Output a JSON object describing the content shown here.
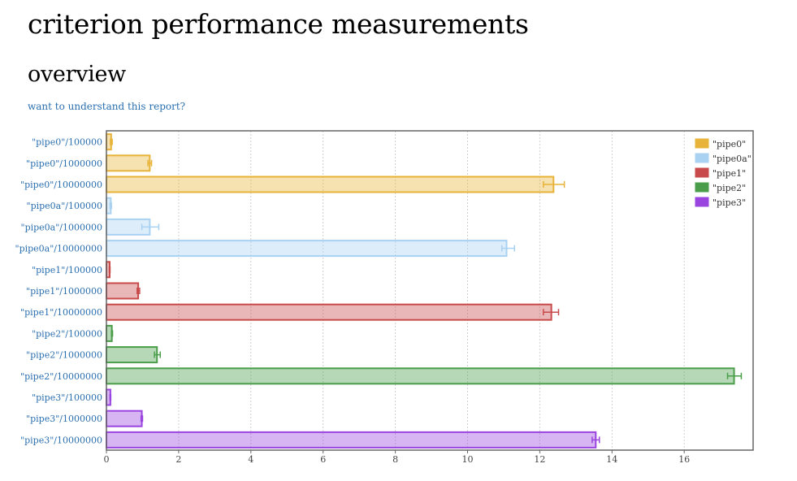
{
  "page": {
    "title": "criterion performance measurements",
    "section": "overview",
    "help_link": "want to understand this report?"
  },
  "chart_data": {
    "type": "bar",
    "orientation": "horizontal",
    "xlim": [
      0,
      18
    ],
    "xticks": [
      0,
      2,
      4,
      6,
      8,
      10,
      12,
      14,
      16
    ],
    "grid": true,
    "legend_position": "top-right",
    "series_colors": {
      "\"pipe0\"": "#e8b339",
      "\"pipe0a\"": "#a9d2f2",
      "\"pipe1\"": "#c94a4a",
      "\"pipe2\"": "#4a9e4a",
      "\"pipe3\"": "#9b45e0"
    },
    "legend": [
      "\"pipe0\"",
      "\"pipe0a\"",
      "\"pipe1\"",
      "\"pipe2\"",
      "\"pipe3\""
    ],
    "bars": [
      {
        "label": "\"pipe0\"/100000",
        "series": "\"pipe0\"",
        "value": 0.13,
        "err_low": 0.11,
        "err_high": 0.16
      },
      {
        "label": "\"pipe0\"/1000000",
        "series": "\"pipe0\"",
        "value": 1.2,
        "err_low": 1.15,
        "err_high": 1.25
      },
      {
        "label": "\"pipe0\"/10000000",
        "series": "\"pipe0\"",
        "value": 12.38,
        "err_low": 12.1,
        "err_high": 12.68
      },
      {
        "label": "\"pipe0a\"/100000",
        "series": "\"pipe0a\"",
        "value": 0.12,
        "err_low": 0.1,
        "err_high": 0.14
      },
      {
        "label": "\"pipe0a\"/1000000",
        "series": "\"pipe0a\"",
        "value": 1.2,
        "err_low": 0.98,
        "err_high": 1.45
      },
      {
        "label": "\"pipe0a\"/10000000",
        "series": "\"pipe0a\"",
        "value": 11.08,
        "err_low": 10.95,
        "err_high": 11.3
      },
      {
        "label": "\"pipe1\"/100000",
        "series": "\"pipe1\"",
        "value": 0.09,
        "err_low": 0.08,
        "err_high": 0.1
      },
      {
        "label": "\"pipe1\"/1000000",
        "series": "\"pipe1\"",
        "value": 0.88,
        "err_low": 0.85,
        "err_high": 0.92
      },
      {
        "label": "\"pipe1\"/10000000",
        "series": "\"pipe1\"",
        "value": 12.32,
        "err_low": 12.1,
        "err_high": 12.52
      },
      {
        "label": "\"pipe2\"/100000",
        "series": "\"pipe2\"",
        "value": 0.15,
        "err_low": 0.14,
        "err_high": 0.17
      },
      {
        "label": "\"pipe2\"/1000000",
        "series": "\"pipe2\"",
        "value": 1.4,
        "err_low": 1.33,
        "err_high": 1.49
      },
      {
        "label": "\"pipe2\"/10000000",
        "series": "\"pipe2\"",
        "value": 17.38,
        "err_low": 17.2,
        "err_high": 17.58
      },
      {
        "label": "\"pipe3\"/100000",
        "series": "\"pipe3\"",
        "value": 0.11,
        "err_low": 0.1,
        "err_high": 0.12
      },
      {
        "label": "\"pipe3\"/1000000",
        "series": "\"pipe3\"",
        "value": 0.98,
        "err_low": 0.96,
        "err_high": 1.0
      },
      {
        "label": "\"pipe3\"/10000000",
        "series": "\"pipe3\"",
        "value": 13.55,
        "err_low": 13.45,
        "err_high": 13.65
      }
    ]
  }
}
